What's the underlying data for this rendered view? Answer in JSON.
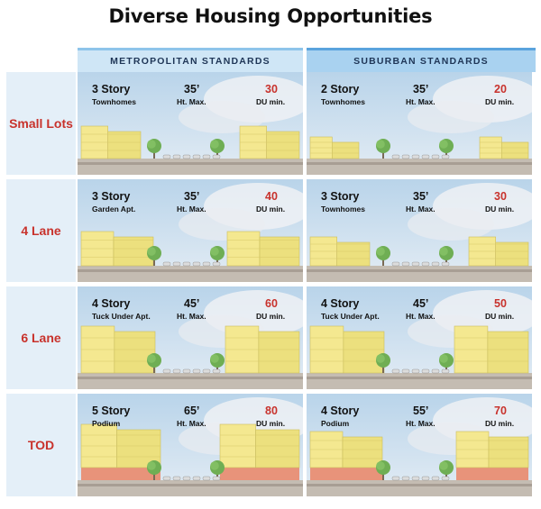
{
  "title": "Diverse Housing Opportunities",
  "columns": [
    "METROPOLITAN STANDARDS",
    "SUBURBAN STANDARDS"
  ],
  "rows": [
    {
      "label": "Small Lots",
      "cells": [
        {
          "stories": "3 Story",
          "type": "Townhomes",
          "height": "35’",
          "height_label": "Ht. Max.",
          "du": "30",
          "du_label": "DU min."
        },
        {
          "stories": "2 Story",
          "type": "Townhomes",
          "height": "35’",
          "height_label": "Ht. Max.",
          "du": "20",
          "du_label": "DU min."
        }
      ]
    },
    {
      "label": "4 Lane",
      "cells": [
        {
          "stories": "3 Story",
          "type": "Garden Apt.",
          "height": "35’",
          "height_label": "Ht. Max.",
          "du": "40",
          "du_label": "DU min."
        },
        {
          "stories": "3 Story",
          "type": "Townhomes",
          "height": "35’",
          "height_label": "Ht. Max.",
          "du": "30",
          "du_label": "DU min."
        }
      ]
    },
    {
      "label": "6 Lane",
      "cells": [
        {
          "stories": "4 Story",
          "type": "Tuck Under Apt.",
          "height": "45’",
          "height_label": "Ht. Max.",
          "du": "60",
          "du_label": "DU min."
        },
        {
          "stories": "4 Story",
          "type": "Tuck Under Apt.",
          "height": "45’",
          "height_label": "Ht. Max.",
          "du": "50",
          "du_label": "DU min."
        }
      ]
    },
    {
      "label": "TOD",
      "cells": [
        {
          "stories": "5 Story",
          "type": "Podium",
          "height": "65’",
          "height_label": "Ht. Max.",
          "du": "80",
          "du_label": "DU min."
        },
        {
          "stories": "4 Story",
          "type": "Podium",
          "height": "55’",
          "height_label": "Ht. Max.",
          "du": "70",
          "du_label": "DU min."
        }
      ]
    }
  ],
  "colors": {
    "accent_red": "#c8322c",
    "metro_header": "#cfe6f6",
    "suburban_header": "#a9d2f0",
    "row_label_bg": "#e4eff8",
    "building": "#f2e58a",
    "podium": "#e8937a",
    "tree": "#6fae54"
  }
}
